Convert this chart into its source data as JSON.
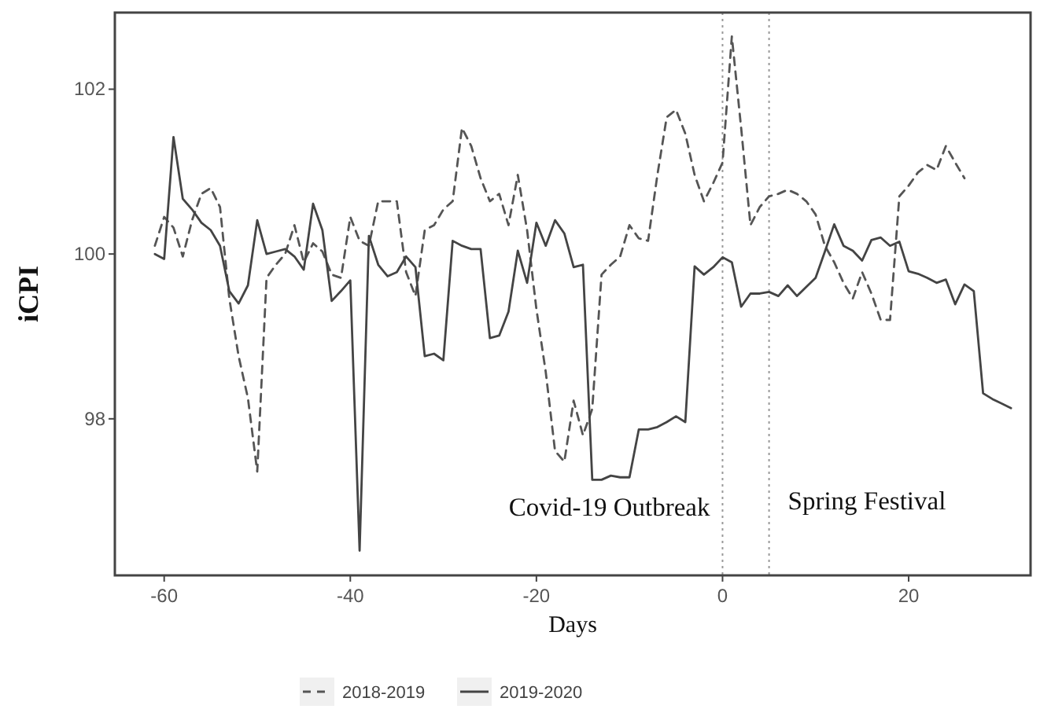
{
  "chart_data": {
    "type": "line",
    "xlabel": "Days",
    "ylabel": "iCPI",
    "xlim": [
      -65.3,
      33.1
    ],
    "ylim": [
      96.1,
      102.93
    ],
    "xticks": [
      -60,
      -40,
      -20,
      0,
      20
    ],
    "yticks": [
      98,
      100,
      102
    ],
    "grid": false,
    "legend": "bottom",
    "series": [
      {
        "name": "2018-2019",
        "color": "#555555",
        "line_style": "dashed",
        "x": [
          -61,
          -60,
          -59,
          -58,
          -57,
          -56,
          -55,
          -54,
          -53,
          -52,
          -51,
          -50,
          -49,
          -48,
          -47,
          -46,
          -45,
          -44,
          -43,
          -42,
          -41,
          -40,
          -39,
          -38,
          -37,
          -36,
          -35,
          -34,
          -33,
          -32,
          -31,
          -30,
          -29,
          -28,
          -27,
          -26,
          -25,
          -24,
          -23,
          -22,
          -21,
          -20,
          -19,
          -18,
          -17,
          -16,
          -15,
          -14,
          -13,
          -12,
          -11,
          -10,
          -9,
          -8,
          -7,
          -6,
          -5,
          -4,
          -3,
          -2,
          -1,
          0,
          1,
          2,
          3,
          4,
          5,
          6,
          7,
          8,
          9,
          10,
          11,
          12,
          13,
          14,
          15,
          16,
          17,
          18,
          19,
          20,
          21,
          22,
          23,
          24,
          25,
          26
        ],
        "values": [
          100.1,
          100.45,
          100.32,
          99.97,
          100.41,
          100.73,
          100.8,
          100.57,
          99.46,
          98.76,
          98.25,
          97.36,
          99.71,
          99.87,
          100.0,
          100.35,
          99.9,
          100.13,
          100.03,
          99.75,
          99.71,
          100.45,
          100.16,
          100.1,
          100.64,
          100.64,
          100.64,
          99.78,
          99.49,
          100.29,
          100.35,
          100.54,
          100.64,
          101.53,
          101.31,
          100.92,
          100.64,
          100.73,
          100.35,
          100.96,
          100.29,
          99.33,
          98.57,
          97.61,
          97.48,
          98.22,
          97.8,
          98.12,
          99.75,
          99.87,
          99.97,
          100.35,
          100.19,
          100.16,
          100.96,
          101.66,
          101.75,
          101.46,
          100.96,
          100.64,
          100.86,
          101.11,
          102.64,
          101.53,
          100.35,
          100.57,
          100.7,
          100.73,
          100.78,
          100.73,
          100.64,
          100.48,
          100.1,
          99.9,
          99.65,
          99.46,
          99.78,
          99.52,
          99.2,
          99.2,
          100.7,
          100.83,
          100.99,
          101.08,
          101.02,
          101.31,
          101.11,
          100.92
        ]
      },
      {
        "name": "2019-2020",
        "color": "#444444",
        "line_style": "solid",
        "x": [
          -61,
          -60,
          -59,
          -58,
          -57,
          -56,
          -55,
          -54,
          -53,
          -52,
          -51,
          -50,
          -49,
          -48,
          -47,
          -46,
          -45,
          -44,
          -43,
          -42,
          -41,
          -40,
          -39,
          -38,
          -37,
          -36,
          -35,
          -34,
          -33,
          -32,
          -31,
          -30,
          -29,
          -28,
          -27,
          -26,
          -25,
          -24,
          -23,
          -22,
          -21,
          -20,
          -19,
          -18,
          -17,
          -16,
          -15,
          -14,
          -13,
          -12,
          -11,
          -10,
          -9,
          -8,
          -7,
          -6,
          -5,
          -4,
          -3,
          -2,
          -1,
          0,
          1,
          2,
          3,
          4,
          5,
          6,
          7,
          8,
          9,
          10,
          11,
          12,
          13,
          14,
          15,
          16,
          17,
          18,
          19,
          20,
          21,
          22,
          23,
          24,
          25,
          26,
          27,
          28,
          29,
          31
        ],
        "values": [
          100.0,
          99.94,
          101.42,
          100.67,
          100.54,
          100.38,
          100.29,
          100.1,
          99.55,
          99.4,
          99.62,
          100.41,
          100.0,
          100.03,
          100.06,
          99.97,
          99.81,
          100.61,
          100.29,
          99.43,
          99.55,
          99.68,
          96.4,
          100.22,
          99.87,
          99.73,
          99.78,
          99.97,
          99.84,
          98.76,
          98.79,
          98.71,
          100.16,
          100.1,
          100.06,
          100.06,
          98.98,
          99.01,
          99.3,
          100.04,
          99.65,
          100.38,
          100.1,
          100.41,
          100.25,
          99.84,
          99.87,
          97.26,
          97.26,
          97.31,
          97.29,
          97.29,
          97.87,
          97.87,
          97.9,
          97.96,
          98.03,
          97.96,
          99.85,
          99.75,
          99.84,
          99.96,
          99.9,
          99.36,
          99.52,
          99.52,
          99.54,
          99.49,
          99.62,
          99.49,
          99.6,
          99.71,
          100.03,
          100.36,
          100.1,
          100.04,
          99.92,
          100.17,
          100.2,
          100.1,
          100.15,
          99.79,
          99.76,
          99.71,
          99.65,
          99.69,
          99.39,
          99.63,
          99.55,
          98.31,
          98.24,
          98.13
        ]
      }
    ],
    "ref_lines": [
      {
        "axis": "x",
        "value": 0,
        "color": "#999999",
        "line_style": "dotted",
        "label": "Covid-19 Outbreak"
      },
      {
        "axis": "x",
        "value": 5,
        "color": "#999999",
        "line_style": "dotted",
        "label": "Spring Festival"
      }
    ]
  }
}
